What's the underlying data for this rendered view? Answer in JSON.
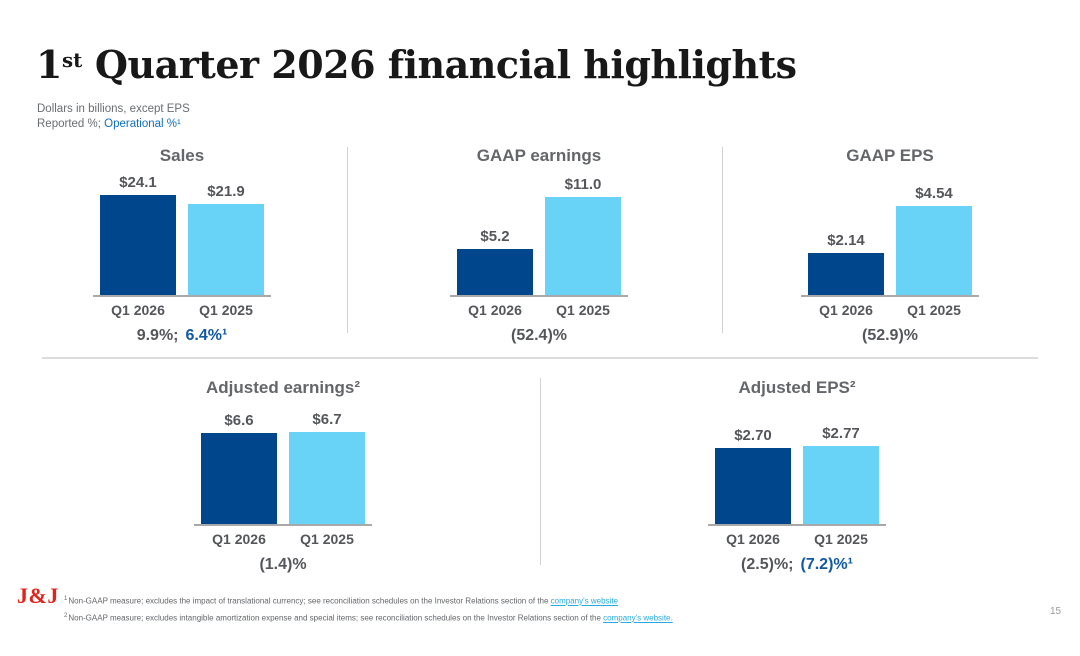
{
  "page": {
    "title_num": "1",
    "title_sup": "st",
    "title_rest": " Quarter 2026 financial highlights",
    "subtitle_line1": "Dollars in billions, except EPS",
    "subtitle_reported": "Reported %; ",
    "subtitle_operational": "Operational %¹",
    "page_number": "15"
  },
  "colors": {
    "bar_q1_2026_dark_blue": "#00468c",
    "bar_q1_2025_light_blue": "#69d2f7",
    "operational_text_blue": "#0f6fc0",
    "change_text_blue": "#1259a3",
    "footnote_link_blue": "#29abe2",
    "jnj_logo_red": "#e2231a"
  },
  "chart_data": [
    {
      "type": "bar",
      "title": "Sales",
      "categories": [
        "Q1 2026",
        "Q1 2025"
      ],
      "values": [
        24.1,
        21.9
      ],
      "value_labels": [
        "$24.1",
        "$21.9"
      ],
      "ylim": [
        0,
        24.1
      ],
      "change_reported": "9.9%;",
      "change_operational": "6.4%¹"
    },
    {
      "type": "bar",
      "title": "GAAP earnings",
      "categories": [
        "Q1 2026",
        "Q1 2025"
      ],
      "values": [
        5.2,
        11.0
      ],
      "value_labels": [
        "$5.2",
        "$11.0"
      ],
      "ylim": [
        0,
        11.0
      ],
      "change_reported": "(52.4)%",
      "change_operational": ""
    },
    {
      "type": "bar",
      "title": "GAAP EPS",
      "categories": [
        "Q1 2026",
        "Q1 2025"
      ],
      "values": [
        2.14,
        4.54
      ],
      "value_labels": [
        "$2.14",
        "$4.54"
      ],
      "ylim": [
        0,
        4.54
      ],
      "change_reported": "(52.9)%",
      "change_operational": ""
    },
    {
      "type": "bar",
      "title": "Adjusted earnings²",
      "categories": [
        "Q1 2026",
        "Q1 2025"
      ],
      "values": [
        6.6,
        6.7
      ],
      "value_labels": [
        "$6.6",
        "$6.7"
      ],
      "ylim": [
        0,
        6.7
      ],
      "change_reported": "(1.4)%",
      "change_operational": ""
    },
    {
      "type": "bar",
      "title": "Adjusted EPS²",
      "categories": [
        "Q1 2026",
        "Q1 2025"
      ],
      "values": [
        2.7,
        2.77
      ],
      "value_labels": [
        "$2.70",
        "$2.77"
      ],
      "ylim": [
        0,
        2.77
      ],
      "change_reported": "(2.5)%;",
      "change_operational": "(7.2)%¹"
    }
  ],
  "footer": {
    "logo": "J&J",
    "footnote1_marker": "1",
    "footnote1_text": "Non-GAAP measure; excludes the impact of translational currency; see reconciliation schedules on the Investor Relations section of the ",
    "footnote1_link": "company's website",
    "footnote2_marker": "2",
    "footnote2_text": "Non-GAAP measure; excludes intangible amortization expense and special items; see reconciliation schedules on the Investor Relations section of the ",
    "footnote2_link": "company's website."
  }
}
